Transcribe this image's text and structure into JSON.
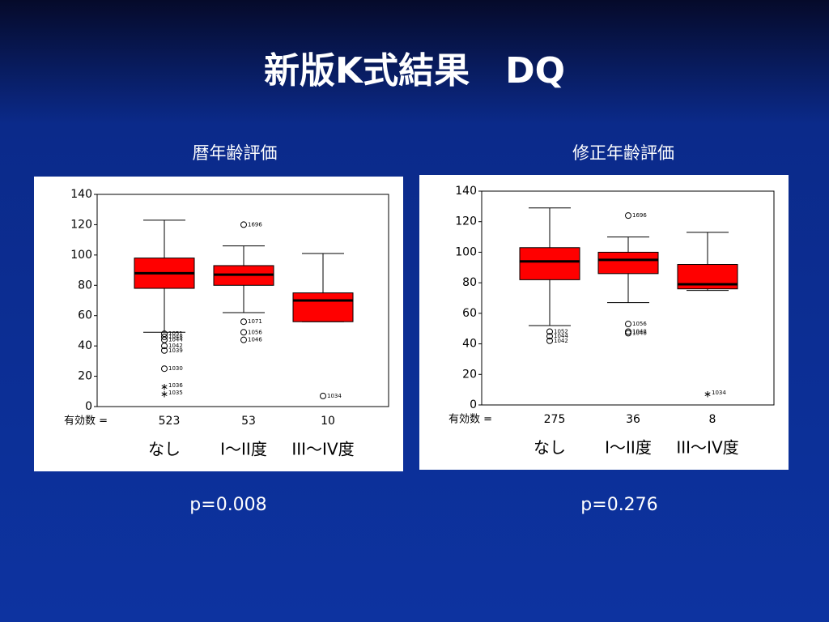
{
  "title": "新版K式結果　DQ",
  "chart_data": [
    {
      "type": "box",
      "title": "暦年齢評価",
      "n_label": "有効数 =",
      "annotation": "p=0.008",
      "categories": [
        "なし",
        "I〜II度",
        "III〜IV度"
      ],
      "n": [
        523,
        53,
        10
      ],
      "ylim": [
        0,
        140
      ],
      "yticks": [
        0,
        20,
        40,
        60,
        80,
        100,
        120,
        140
      ],
      "color": "#ff0000",
      "boxes": [
        {
          "min": 49,
          "q1": 78,
          "median": 88,
          "q3": 98,
          "max": 123,
          "outliers": [
            {
              "value": 48,
              "label": "1051",
              "marker": "circle"
            },
            {
              "value": 46,
              "label": "1048",
              "marker": "circle"
            },
            {
              "value": 44,
              "label": "1044",
              "marker": "circle"
            },
            {
              "value": 40,
              "label": "1042",
              "marker": "circle"
            },
            {
              "value": 37,
              "label": "1039",
              "marker": "circle"
            },
            {
              "value": 25,
              "label": "1030",
              "marker": "circle"
            },
            {
              "value": 14,
              "label": "1036",
              "marker": "star"
            },
            {
              "value": 9,
              "label": "1035",
              "marker": "star"
            }
          ]
        },
        {
          "min": 62,
          "q1": 80,
          "median": 87,
          "q3": 93,
          "max": 106,
          "outliers": [
            {
              "value": 120,
              "label": "1696",
              "marker": "circle"
            },
            {
              "value": 56,
              "label": "1071",
              "marker": "circle"
            },
            {
              "value": 49,
              "label": "1056",
              "marker": "circle"
            },
            {
              "value": 44,
              "label": "1046",
              "marker": "circle"
            }
          ]
        },
        {
          "min": 56,
          "q1": 56,
          "median": 70,
          "q3": 75,
          "max": 101,
          "outliers": [
            {
              "value": 7,
              "label": "1034",
              "marker": "circle"
            }
          ]
        }
      ]
    },
    {
      "type": "box",
      "title": "修正年齢評価",
      "n_label": "有効数 =",
      "annotation": "p=0.276",
      "categories": [
        "なし",
        "I〜II度",
        "III〜IV度"
      ],
      "n": [
        275,
        36,
        8
      ],
      "ylim": [
        0,
        140
      ],
      "yticks": [
        0,
        20,
        40,
        60,
        80,
        100,
        120,
        140
      ],
      "color": "#ff0000",
      "boxes": [
        {
          "min": 52,
          "q1": 82,
          "median": 94,
          "q3": 103,
          "max": 129,
          "outliers": [
            {
              "value": 48,
              "label": "1052",
              "marker": "circle"
            },
            {
              "value": 45,
              "label": "1044",
              "marker": "circle"
            },
            {
              "value": 42,
              "label": "1042",
              "marker": "circle"
            }
          ]
        },
        {
          "min": 67,
          "q1": 86,
          "median": 95,
          "q3": 100,
          "max": 110,
          "outliers": [
            {
              "value": 124,
              "label": "1696",
              "marker": "circle"
            },
            {
              "value": 53,
              "label": "1056",
              "marker": "circle"
            },
            {
              "value": 48,
              "label": "1048",
              "marker": "circle"
            },
            {
              "value": 47,
              "label": "1046",
              "marker": "circle"
            }
          ]
        },
        {
          "min": 75,
          "q1": 76,
          "median": 79,
          "q3": 92,
          "max": 113,
          "outliers": [
            {
              "value": 8,
              "label": "1034",
              "marker": "star"
            }
          ]
        }
      ]
    }
  ]
}
